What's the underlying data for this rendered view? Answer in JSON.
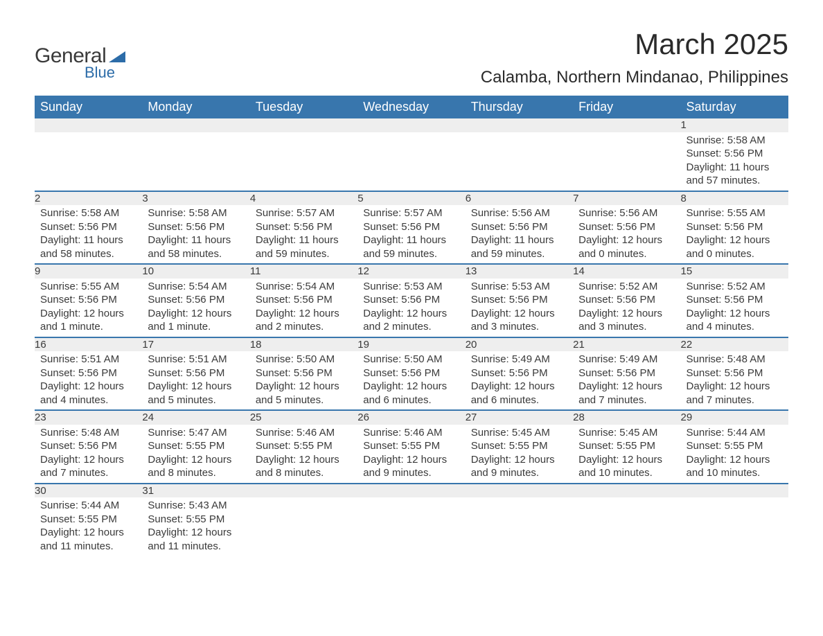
{
  "logo": {
    "text1": "General",
    "text2": "Blue"
  },
  "title": "March 2025",
  "location": "Calamba, Northern Mindanao, Philippines",
  "weekdays": [
    "Sunday",
    "Monday",
    "Tuesday",
    "Wednesday",
    "Thursday",
    "Friday",
    "Saturday"
  ],
  "colors": {
    "header_bg": "#3876ad",
    "header_text": "#ffffff",
    "daynum_bg": "#eeeeee",
    "row_border": "#3876ad",
    "body_text": "#3a3a3a",
    "logo_accent": "#2c6ca8",
    "page_bg": "#ffffff"
  },
  "typography": {
    "title_fontsize": 42,
    "location_fontsize": 24,
    "weekday_fontsize": 18,
    "daynum_fontsize": 18,
    "cell_fontsize": 15,
    "font_family": "Arial"
  },
  "layout": {
    "columns": 7,
    "rows": 6,
    "first_day_column": 6
  },
  "weeks": [
    [
      {
        "n": "",
        "sunrise": "",
        "sunset": "",
        "daylight": ""
      },
      {
        "n": "",
        "sunrise": "",
        "sunset": "",
        "daylight": ""
      },
      {
        "n": "",
        "sunrise": "",
        "sunset": "",
        "daylight": ""
      },
      {
        "n": "",
        "sunrise": "",
        "sunset": "",
        "daylight": ""
      },
      {
        "n": "",
        "sunrise": "",
        "sunset": "",
        "daylight": ""
      },
      {
        "n": "",
        "sunrise": "",
        "sunset": "",
        "daylight": ""
      },
      {
        "n": "1",
        "sunrise": "Sunrise: 5:58 AM",
        "sunset": "Sunset: 5:56 PM",
        "daylight": "Daylight: 11 hours and 57 minutes."
      }
    ],
    [
      {
        "n": "2",
        "sunrise": "Sunrise: 5:58 AM",
        "sunset": "Sunset: 5:56 PM",
        "daylight": "Daylight: 11 hours and 58 minutes."
      },
      {
        "n": "3",
        "sunrise": "Sunrise: 5:58 AM",
        "sunset": "Sunset: 5:56 PM",
        "daylight": "Daylight: 11 hours and 58 minutes."
      },
      {
        "n": "4",
        "sunrise": "Sunrise: 5:57 AM",
        "sunset": "Sunset: 5:56 PM",
        "daylight": "Daylight: 11 hours and 59 minutes."
      },
      {
        "n": "5",
        "sunrise": "Sunrise: 5:57 AM",
        "sunset": "Sunset: 5:56 PM",
        "daylight": "Daylight: 11 hours and 59 minutes."
      },
      {
        "n": "6",
        "sunrise": "Sunrise: 5:56 AM",
        "sunset": "Sunset: 5:56 PM",
        "daylight": "Daylight: 11 hours and 59 minutes."
      },
      {
        "n": "7",
        "sunrise": "Sunrise: 5:56 AM",
        "sunset": "Sunset: 5:56 PM",
        "daylight": "Daylight: 12 hours and 0 minutes."
      },
      {
        "n": "8",
        "sunrise": "Sunrise: 5:55 AM",
        "sunset": "Sunset: 5:56 PM",
        "daylight": "Daylight: 12 hours and 0 minutes."
      }
    ],
    [
      {
        "n": "9",
        "sunrise": "Sunrise: 5:55 AM",
        "sunset": "Sunset: 5:56 PM",
        "daylight": "Daylight: 12 hours and 1 minute."
      },
      {
        "n": "10",
        "sunrise": "Sunrise: 5:54 AM",
        "sunset": "Sunset: 5:56 PM",
        "daylight": "Daylight: 12 hours and 1 minute."
      },
      {
        "n": "11",
        "sunrise": "Sunrise: 5:54 AM",
        "sunset": "Sunset: 5:56 PM",
        "daylight": "Daylight: 12 hours and 2 minutes."
      },
      {
        "n": "12",
        "sunrise": "Sunrise: 5:53 AM",
        "sunset": "Sunset: 5:56 PM",
        "daylight": "Daylight: 12 hours and 2 minutes."
      },
      {
        "n": "13",
        "sunrise": "Sunrise: 5:53 AM",
        "sunset": "Sunset: 5:56 PM",
        "daylight": "Daylight: 12 hours and 3 minutes."
      },
      {
        "n": "14",
        "sunrise": "Sunrise: 5:52 AM",
        "sunset": "Sunset: 5:56 PM",
        "daylight": "Daylight: 12 hours and 3 minutes."
      },
      {
        "n": "15",
        "sunrise": "Sunrise: 5:52 AM",
        "sunset": "Sunset: 5:56 PM",
        "daylight": "Daylight: 12 hours and 4 minutes."
      }
    ],
    [
      {
        "n": "16",
        "sunrise": "Sunrise: 5:51 AM",
        "sunset": "Sunset: 5:56 PM",
        "daylight": "Daylight: 12 hours and 4 minutes."
      },
      {
        "n": "17",
        "sunrise": "Sunrise: 5:51 AM",
        "sunset": "Sunset: 5:56 PM",
        "daylight": "Daylight: 12 hours and 5 minutes."
      },
      {
        "n": "18",
        "sunrise": "Sunrise: 5:50 AM",
        "sunset": "Sunset: 5:56 PM",
        "daylight": "Daylight: 12 hours and 5 minutes."
      },
      {
        "n": "19",
        "sunrise": "Sunrise: 5:50 AM",
        "sunset": "Sunset: 5:56 PM",
        "daylight": "Daylight: 12 hours and 6 minutes."
      },
      {
        "n": "20",
        "sunrise": "Sunrise: 5:49 AM",
        "sunset": "Sunset: 5:56 PM",
        "daylight": "Daylight: 12 hours and 6 minutes."
      },
      {
        "n": "21",
        "sunrise": "Sunrise: 5:49 AM",
        "sunset": "Sunset: 5:56 PM",
        "daylight": "Daylight: 12 hours and 7 minutes."
      },
      {
        "n": "22",
        "sunrise": "Sunrise: 5:48 AM",
        "sunset": "Sunset: 5:56 PM",
        "daylight": "Daylight: 12 hours and 7 minutes."
      }
    ],
    [
      {
        "n": "23",
        "sunrise": "Sunrise: 5:48 AM",
        "sunset": "Sunset: 5:56 PM",
        "daylight": "Daylight: 12 hours and 7 minutes."
      },
      {
        "n": "24",
        "sunrise": "Sunrise: 5:47 AM",
        "sunset": "Sunset: 5:55 PM",
        "daylight": "Daylight: 12 hours and 8 minutes."
      },
      {
        "n": "25",
        "sunrise": "Sunrise: 5:46 AM",
        "sunset": "Sunset: 5:55 PM",
        "daylight": "Daylight: 12 hours and 8 minutes."
      },
      {
        "n": "26",
        "sunrise": "Sunrise: 5:46 AM",
        "sunset": "Sunset: 5:55 PM",
        "daylight": "Daylight: 12 hours and 9 minutes."
      },
      {
        "n": "27",
        "sunrise": "Sunrise: 5:45 AM",
        "sunset": "Sunset: 5:55 PM",
        "daylight": "Daylight: 12 hours and 9 minutes."
      },
      {
        "n": "28",
        "sunrise": "Sunrise: 5:45 AM",
        "sunset": "Sunset: 5:55 PM",
        "daylight": "Daylight: 12 hours and 10 minutes."
      },
      {
        "n": "29",
        "sunrise": "Sunrise: 5:44 AM",
        "sunset": "Sunset: 5:55 PM",
        "daylight": "Daylight: 12 hours and 10 minutes."
      }
    ],
    [
      {
        "n": "30",
        "sunrise": "Sunrise: 5:44 AM",
        "sunset": "Sunset: 5:55 PM",
        "daylight": "Daylight: 12 hours and 11 minutes."
      },
      {
        "n": "31",
        "sunrise": "Sunrise: 5:43 AM",
        "sunset": "Sunset: 5:55 PM",
        "daylight": "Daylight: 12 hours and 11 minutes."
      },
      {
        "n": "",
        "sunrise": "",
        "sunset": "",
        "daylight": ""
      },
      {
        "n": "",
        "sunrise": "",
        "sunset": "",
        "daylight": ""
      },
      {
        "n": "",
        "sunrise": "",
        "sunset": "",
        "daylight": ""
      },
      {
        "n": "",
        "sunrise": "",
        "sunset": "",
        "daylight": ""
      },
      {
        "n": "",
        "sunrise": "",
        "sunset": "",
        "daylight": ""
      }
    ]
  ]
}
